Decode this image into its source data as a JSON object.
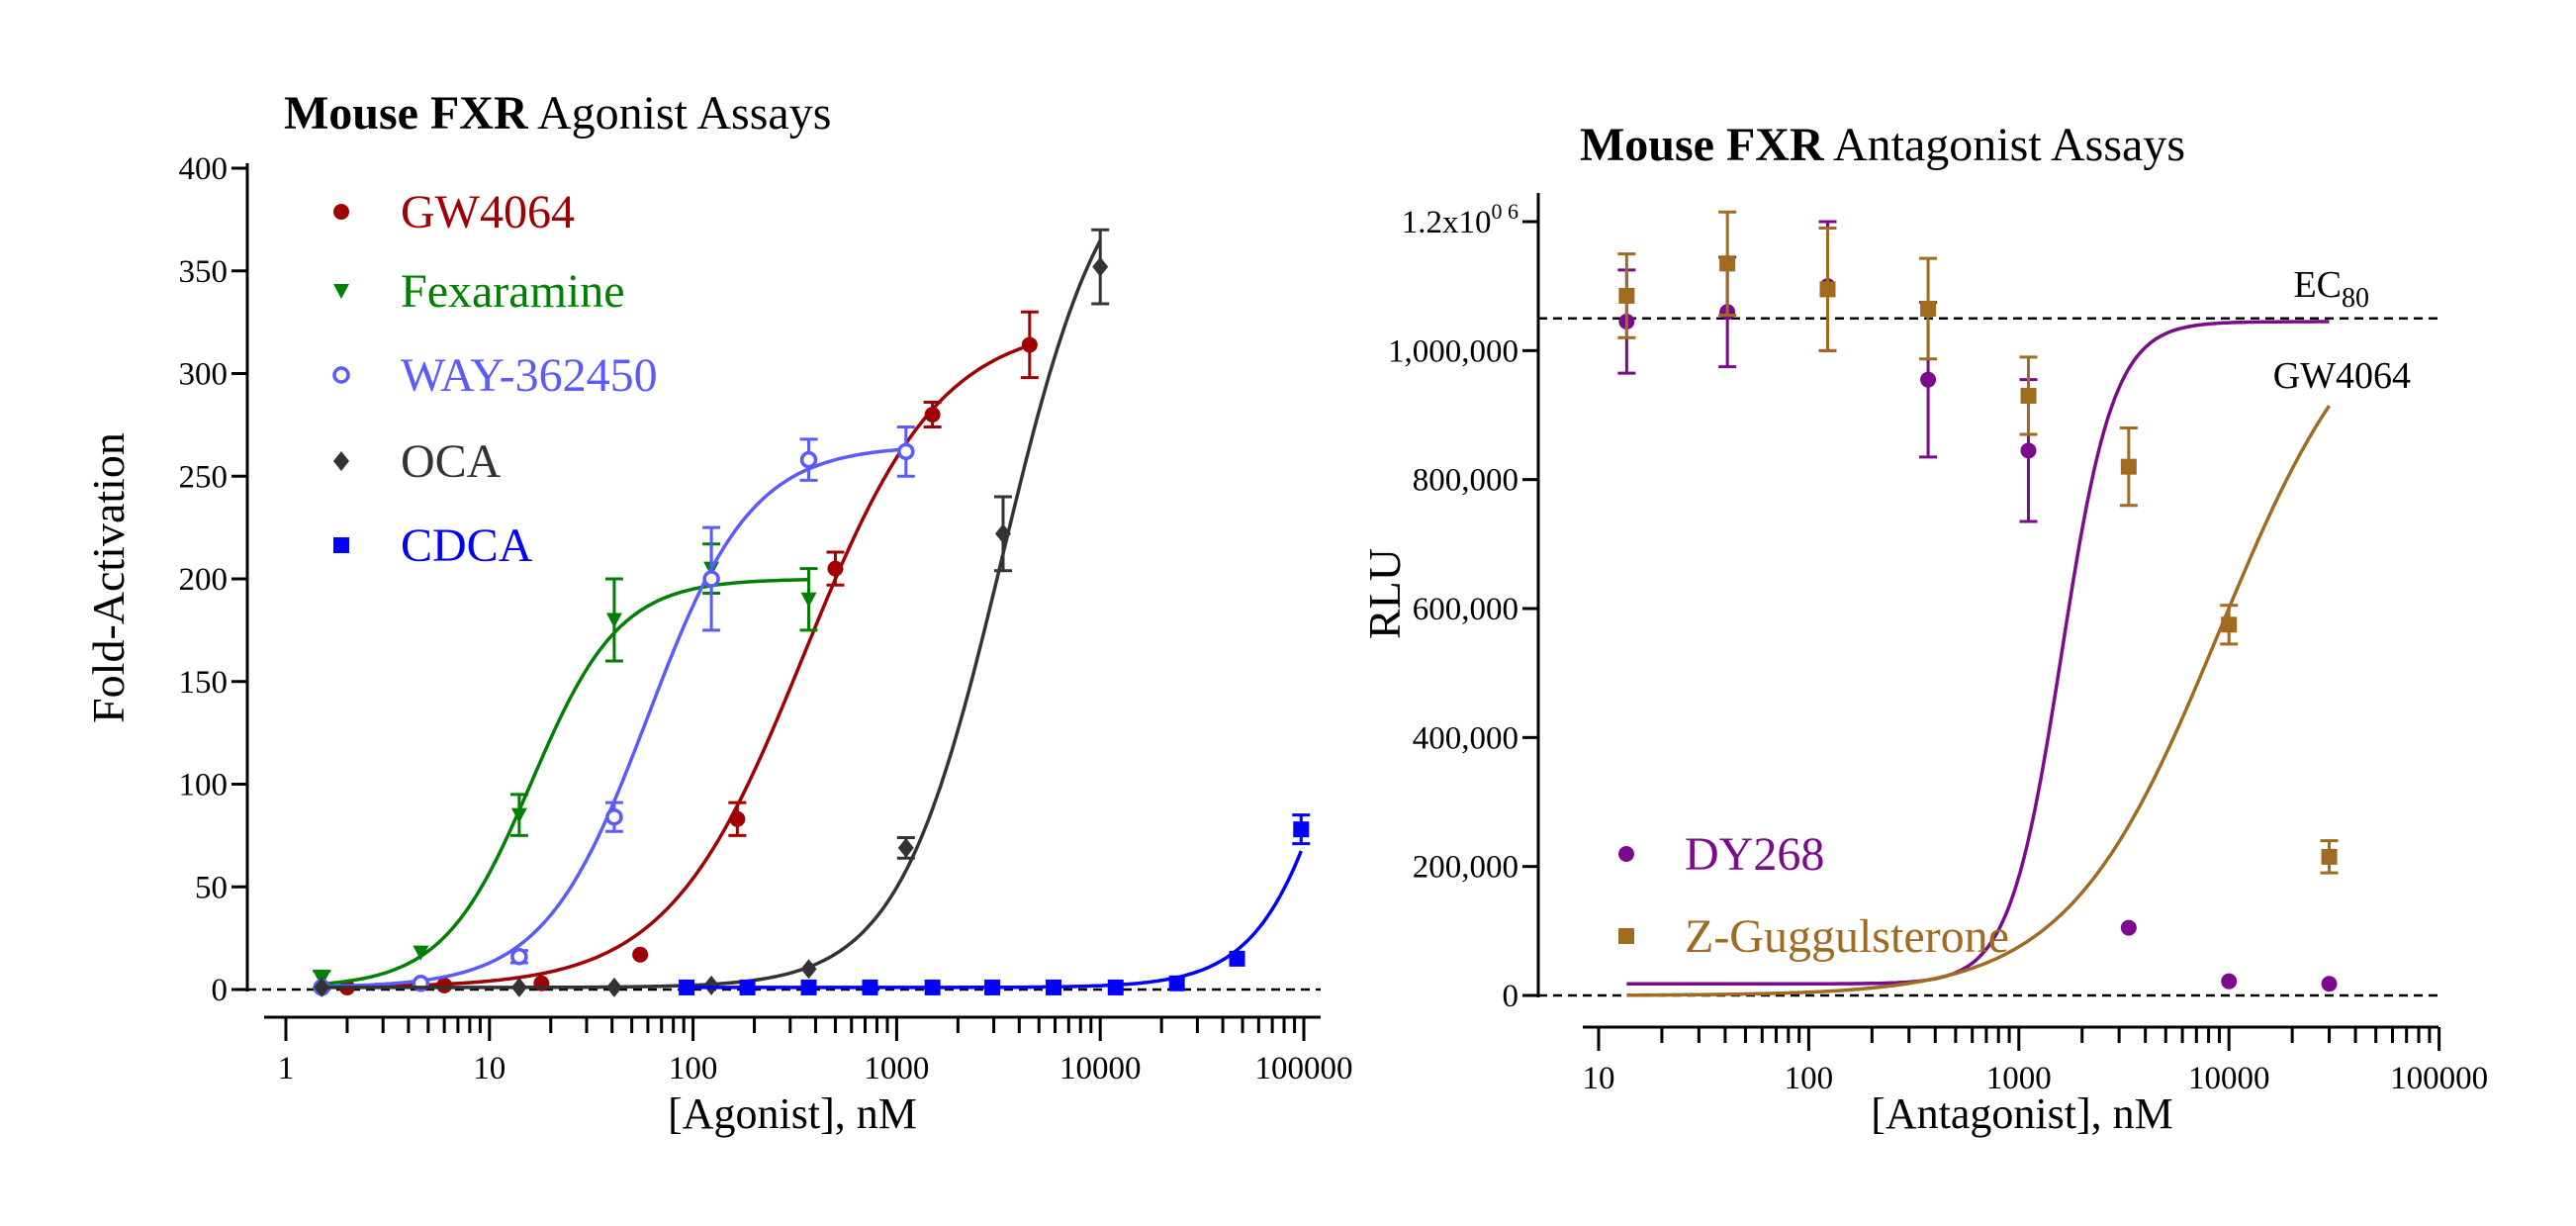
{
  "chart_data": [
    {
      "type": "scatter",
      "title_bold": "Mouse FXR",
      "title_rest": " Agonist Assays",
      "xlabel": "[Agonist], nM",
      "ylabel": "Fold-Activation",
      "xscale": "log",
      "xlim": [
        1,
        100000
      ],
      "ylim": [
        0,
        400
      ],
      "x_ticks": [
        "1",
        "10",
        "100",
        "1000",
        "10000",
        "100000"
      ],
      "y_ticks": [
        "0",
        "50",
        "100",
        "150",
        "200",
        "250",
        "300",
        "350",
        "400"
      ],
      "baseline": 0,
      "legend_position": "top-left",
      "series": [
        {
          "name": "GW4064",
          "color": "#a00000",
          "marker": "filled-circle",
          "x": [
            2,
            6,
            18,
            55,
            165,
            500,
            1500,
            4500
          ],
          "y": [
            1,
            2,
            3,
            17,
            83,
            205,
            280,
            314
          ],
          "y_err": [
            0,
            0,
            0,
            0,
            8,
            8,
            6,
            16
          ],
          "fit": {
            "bottom": 1,
            "top": 325,
            "ec50": 350,
            "hill": 1.3
          }
        },
        {
          "name": "Fexaramine",
          "color": "#008000",
          "marker": "triangle-down",
          "x": [
            1.5,
            4.6,
            14,
            41,
            123,
            370
          ],
          "y": [
            5,
            18,
            85,
            180,
            205,
            190
          ],
          "y_err": [
            4,
            0,
            10,
            20,
            12,
            15
          ],
          "fit": {
            "bottom": 1,
            "top": 200,
            "ec50": 16,
            "hill": 2
          }
        },
        {
          "name": "WAY-362450",
          "color": "#5a5aff",
          "marker": "open-circle",
          "x": [
            1.5,
            4.6,
            14,
            41,
            123,
            370,
            1111
          ],
          "y": [
            1,
            3,
            16,
            84,
            200,
            258,
            262
          ],
          "y_err": [
            0,
            0,
            3,
            7,
            25,
            10,
            12
          ],
          "fit": {
            "bottom": 1,
            "top": 265,
            "ec50": 60,
            "hill": 1.7
          }
        },
        {
          "name": "OCA",
          "color": "#333333",
          "marker": "diamond",
          "x": [
            1.5,
            14,
            41,
            123,
            370,
            1111,
            3333,
            10000
          ],
          "y": [
            1,
            1,
            1,
            2,
            10,
            69,
            222,
            352
          ],
          "y_err": [
            0,
            0,
            0,
            0,
            0,
            5,
            18,
            18
          ],
          "fit": {
            "bottom": 1,
            "top": 420,
            "ec50": 3300,
            "hill": 1.7
          }
        },
        {
          "name": "CDCA",
          "color": "#0000ff",
          "marker": "square",
          "x": [
            93,
            185,
            370,
            740,
            1500,
            2950,
            5900,
            11900,
            23800,
            47000,
            97000
          ],
          "y": [
            1,
            1,
            1,
            1,
            1,
            1,
            1,
            1,
            3,
            15,
            78
          ],
          "y_err": [
            0,
            0,
            0,
            0,
            0,
            0,
            0,
            0,
            0,
            0,
            7
          ],
          "fit": {
            "bottom": 1,
            "top": 350,
            "ec50": 200000,
            "hill": 2
          }
        }
      ]
    },
    {
      "type": "scatter",
      "title_bold": "Mouse FXR",
      "title_rest": " Antagonist Assays",
      "xlabel": "[Antagonist], nM",
      "ylabel": "RLU",
      "xscale": "log",
      "xlim": [
        10,
        100000
      ],
      "ylim": [
        0,
        1200000
      ],
      "x_ticks": [
        "10",
        "100",
        "1000",
        "10000",
        "100000"
      ],
      "y_ticks": [
        "0",
        "200,000",
        "400,000",
        "600,000",
        "800,000",
        "1,000,000",
        "1.2x10^0 6"
      ],
      "baseline": 0,
      "reference_line": {
        "y": 1050000,
        "label_above": "EC",
        "label_above_sub": "80",
        "label_below": "GW4064"
      },
      "legend_position": "bottom-left",
      "series": [
        {
          "name": "DY268",
          "color": "#7b0a8c",
          "marker": "filled-circle",
          "x": [
            13.6,
            41,
            123,
            370,
            1111,
            3333,
            10000,
            30000
          ],
          "y": [
            1045000,
            1060000,
            1100000,
            955000,
            845000,
            105000,
            22000,
            18000
          ],
          "y_err": [
            80000,
            85000,
            100000,
            120000,
            110000,
            0,
            0,
            0
          ],
          "fit": {
            "bottom": 18000,
            "top": 1045000,
            "ec50": 1600,
            "hill": 3.5
          }
        },
        {
          "name": "Z-Guggulsterone",
          "color": "#a06a20",
          "marker": "square",
          "x": [
            13.6,
            41,
            123,
            370,
            1111,
            3333,
            10000,
            30000
          ],
          "y": [
            1085000,
            1135000,
            1095000,
            1065000,
            930000,
            820000,
            575000,
            215000
          ],
          "y_err": [
            65000,
            80000,
            95000,
            78000,
            60000,
            60000,
            30000,
            25000
          ],
          "fit": {
            "bottom": 0,
            "top": 1130000,
            "ec50": 9000,
            "hill": 1.2
          }
        }
      ]
    }
  ]
}
